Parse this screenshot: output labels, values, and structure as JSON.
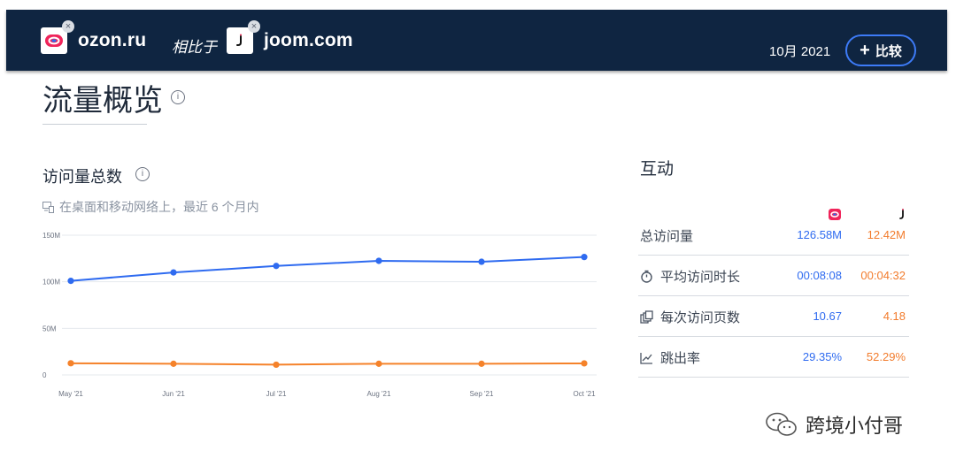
{
  "header": {
    "site1": {
      "name": "ozon.ru",
      "logo_icon": "ozon-logo-icon",
      "remove_icon": "close-icon"
    },
    "vs_label": "相比于",
    "site2": {
      "name": "joom.com",
      "logo_icon": "joom-logo-icon",
      "remove_icon": "close-icon"
    },
    "period": "10月 2021",
    "compare_button": {
      "icon": "plus-icon",
      "label": "比较"
    }
  },
  "page": {
    "title": "流量概览",
    "info_icon": "info-icon"
  },
  "total_visits": {
    "title": "访问量总数",
    "subtitle": "在桌面和移动网络上，最近 6 个月内",
    "chart_data": {
      "type": "line",
      "categories": [
        "May '21",
        "Jun '21",
        "Jul '21",
        "Aug '21",
        "Sep '21",
        "Oct '21"
      ],
      "y_ticks": [
        "150M",
        "100M",
        "50M",
        "0"
      ],
      "ylim": [
        0,
        150
      ],
      "grid": true,
      "series": [
        {
          "color": "#2f6bf0",
          "values": [
            101,
            110,
            117,
            122.5,
            121.5,
            126.6
          ]
        },
        {
          "color": "#f5822a",
          "values": [
            12.5,
            12,
            11,
            12,
            12,
            12.4
          ]
        }
      ]
    }
  },
  "engagement": {
    "title": "互动",
    "col_icons": [
      "ozon-logo-icon",
      "joom-logo-icon"
    ],
    "rows": [
      {
        "label": "总访问量",
        "icon": "",
        "v1": "126.58M",
        "v2": "12.42M"
      },
      {
        "label": "平均访问时长",
        "icon": "stopwatch-icon",
        "v1": "00:08:08",
        "v2": "00:04:32"
      },
      {
        "label": "每次访问页数",
        "icon": "pages-icon",
        "v1": "10.67",
        "v2": "4.18"
      },
      {
        "label": "跳出率",
        "icon": "bounce-icon",
        "v1": "29.35%",
        "v2": "52.29%"
      }
    ]
  },
  "watermark": {
    "icon": "wechat-icon",
    "text": "跨境小付哥"
  },
  "colors": {
    "header_bg": "#0f2541",
    "accent_blue": "#2f6bf0",
    "accent_orange": "#f5822a"
  }
}
